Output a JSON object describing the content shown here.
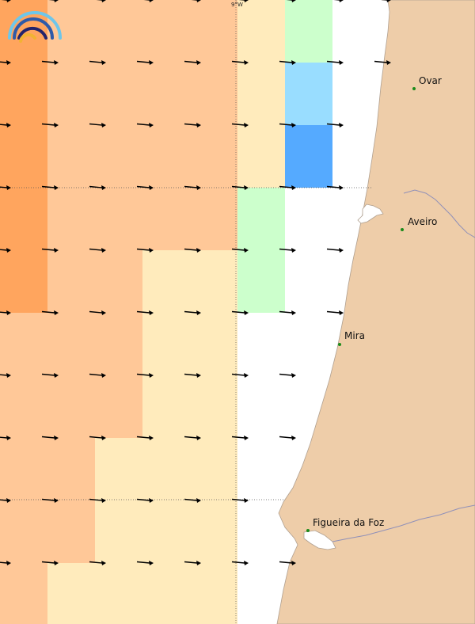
{
  "map": {
    "longitude_label": "9°W",
    "colors": {
      "land": "#eecda9",
      "coast_line": "#b0a090",
      "river": "#9090b8",
      "sea_none": "#ffffff",
      "arrow": "#000000",
      "graticule": "#555555",
      "place_dot": "#1a8a1a",
      "level_1": "#ffa55e",
      "level_2": "#ffc898",
      "level_3": "#ffebbc",
      "level_4": "#ccffcc",
      "level_5": "#99ddff",
      "level_6": "#55aaff"
    },
    "places": [
      {
        "name": "Ovar"
      },
      {
        "name": "Aveiro"
      },
      {
        "name": "Mira"
      },
      {
        "name": "Figueira da Foz"
      }
    ],
    "grid": {
      "rows": 10,
      "cols": 8,
      "cells": [
        [
          1,
          2,
          2,
          2,
          2,
          3,
          4,
          0
        ],
        [
          1,
          2,
          2,
          2,
          2,
          3,
          5,
          0
        ],
        [
          1,
          2,
          2,
          2,
          2,
          3,
          6,
          0
        ],
        [
          1,
          2,
          2,
          2,
          2,
          4,
          0,
          0
        ],
        [
          1,
          2,
          2,
          3,
          3,
          4,
          0,
          0
        ],
        [
          2,
          2,
          2,
          3,
          3,
          0,
          0,
          0
        ],
        [
          2,
          2,
          2,
          3,
          3,
          0,
          0,
          0
        ],
        [
          2,
          2,
          3,
          3,
          3,
          0,
          0,
          0
        ],
        [
          2,
          2,
          3,
          3,
          3,
          0,
          0,
          0
        ],
        [
          2,
          3,
          3,
          3,
          3,
          0,
          0,
          0
        ]
      ]
    },
    "wind_direction": "east"
  },
  "logo": {
    "colors": [
      "#6ec6ea",
      "#2f5aa8",
      "#23246b",
      "#f2b233"
    ]
  }
}
